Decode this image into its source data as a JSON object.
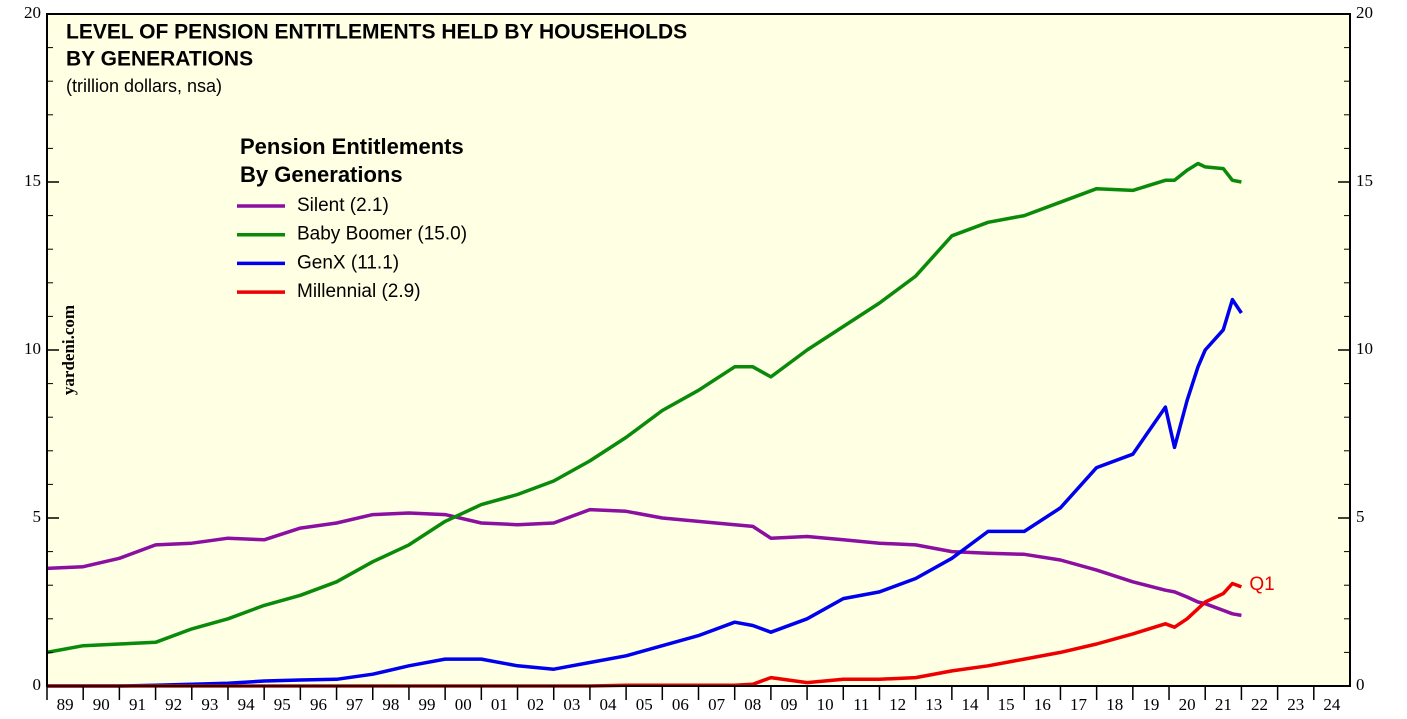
{
  "chart_data": {
    "type": "line",
    "title": [
      "LEVEL OF PENSION ENTITLEMENTS HELD BY HOUSEHOLDS",
      "BY GENERATIONS"
    ],
    "subtitle": "(trillion dollars, nsa)",
    "legend_title": [
      "Pension Entitlements",
      "By Generations"
    ],
    "watermark": "yardeni.com",
    "annotation": "Q1",
    "x": [
      1989,
      1990,
      1991,
      1992,
      1993,
      1994,
      1995,
      1996,
      1997,
      1998,
      1999,
      2000,
      2001,
      2002,
      2003,
      2004,
      2005,
      2006,
      2007,
      2008,
      2008.5,
      2009,
      2010,
      2011,
      2012,
      2013,
      2014,
      2015,
      2016,
      2017,
      2018,
      2019,
      2019.9,
      2020.15,
      2020.5,
      2020.8,
      2021,
      2021.5,
      2021.75,
      2022
    ],
    "series": [
      {
        "name": "Silent (2.1)",
        "color": "#8b0fa0",
        "values": [
          3.5,
          3.55,
          3.8,
          4.2,
          4.25,
          4.4,
          4.35,
          4.7,
          4.85,
          5.1,
          5.15,
          5.1,
          4.85,
          4.8,
          4.85,
          5.25,
          5.2,
          5.0,
          4.9,
          4.8,
          4.75,
          4.4,
          4.45,
          4.35,
          4.25,
          4.2,
          4.0,
          3.95,
          3.92,
          3.75,
          3.45,
          3.1,
          2.85,
          2.8,
          2.65,
          2.5,
          2.45,
          2.25,
          2.15,
          2.1
        ]
      },
      {
        "name": "Baby Boomer (15.0)",
        "color": "#0a8a0a",
        "values": [
          1.0,
          1.2,
          1.25,
          1.3,
          1.7,
          2.0,
          2.4,
          2.7,
          3.1,
          3.7,
          4.2,
          4.9,
          5.4,
          5.7,
          6.1,
          6.7,
          7.4,
          8.2,
          8.8,
          9.5,
          9.5,
          9.2,
          10.0,
          10.7,
          11.4,
          12.2,
          13.4,
          13.8,
          14.0,
          14.4,
          14.8,
          14.75,
          15.05,
          15.05,
          15.35,
          15.55,
          15.45,
          15.4,
          15.05,
          15.0
        ]
      },
      {
        "name": "GenX (11.1)",
        "color": "#0000ee",
        "values": [
          0,
          0,
          0,
          0.02,
          0.05,
          0.08,
          0.15,
          0.18,
          0.2,
          0.35,
          0.6,
          0.8,
          0.8,
          0.6,
          0.5,
          0.7,
          0.9,
          1.2,
          1.5,
          1.9,
          1.8,
          1.6,
          2.0,
          2.6,
          2.8,
          3.2,
          3.8,
          4.6,
          4.6,
          5.3,
          6.5,
          6.9,
          8.3,
          7.1,
          8.5,
          9.5,
          10.0,
          10.6,
          11.5,
          11.1
        ]
      },
      {
        "name": "Millennial (2.9)",
        "color": "#ee0000",
        "values": [
          0,
          0,
          0,
          0,
          0,
          0,
          0,
          0,
          0,
          0,
          0,
          0,
          0,
          0,
          0,
          0,
          0.02,
          0.02,
          0.02,
          0.02,
          0.05,
          0.25,
          0.1,
          0.2,
          0.2,
          0.25,
          0.45,
          0.6,
          0.8,
          1.0,
          1.25,
          1.55,
          1.85,
          1.75,
          2.0,
          2.3,
          2.5,
          2.75,
          3.05,
          2.95
        ]
      }
    ],
    "xlim": [
      1989,
      2025
    ],
    "xticks": [
      {
        "value": 1989.5,
        "label": "89"
      },
      {
        "value": 1990.5,
        "label": "90"
      },
      {
        "value": 1991.5,
        "label": "91"
      },
      {
        "value": 1992.5,
        "label": "92"
      },
      {
        "value": 1993.5,
        "label": "93"
      },
      {
        "value": 1994.5,
        "label": "94"
      },
      {
        "value": 1995.5,
        "label": "95"
      },
      {
        "value": 1996.5,
        "label": "96"
      },
      {
        "value": 1997.5,
        "label": "97"
      },
      {
        "value": 1998.5,
        "label": "98"
      },
      {
        "value": 1999.5,
        "label": "99"
      },
      {
        "value": 2000.5,
        "label": "00"
      },
      {
        "value": 2001.5,
        "label": "01"
      },
      {
        "value": 2002.5,
        "label": "02"
      },
      {
        "value": 2003.5,
        "label": "03"
      },
      {
        "value": 2004.5,
        "label": "04"
      },
      {
        "value": 2005.5,
        "label": "05"
      },
      {
        "value": 2006.5,
        "label": "06"
      },
      {
        "value": 2007.5,
        "label": "07"
      },
      {
        "value": 2008.5,
        "label": "08"
      },
      {
        "value": 2009.5,
        "label": "09"
      },
      {
        "value": 2010.5,
        "label": "10"
      },
      {
        "value": 2011.5,
        "label": "11"
      },
      {
        "value": 2012.5,
        "label": "12"
      },
      {
        "value": 2013.5,
        "label": "13"
      },
      {
        "value": 2014.5,
        "label": "14"
      },
      {
        "value": 2015.5,
        "label": "15"
      },
      {
        "value": 2016.5,
        "label": "16"
      },
      {
        "value": 2017.5,
        "label": "17"
      },
      {
        "value": 2018.5,
        "label": "18"
      },
      {
        "value": 2019.5,
        "label": "19"
      },
      {
        "value": 2020.5,
        "label": "20"
      },
      {
        "value": 2021.5,
        "label": "21"
      },
      {
        "value": 2022.5,
        "label": "22"
      },
      {
        "value": 2023.5,
        "label": "23"
      },
      {
        "value": 2024.5,
        "label": "24"
      }
    ],
    "ylim": [
      0,
      20
    ],
    "yticks": [
      0,
      5,
      10,
      15,
      20
    ],
    "grid": false
  }
}
